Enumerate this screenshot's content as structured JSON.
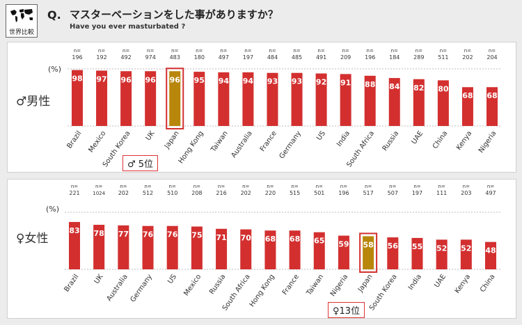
{
  "header": {
    "logo_text": "世界比較",
    "q_label": "Q.",
    "title": "マスターベーションをした事がありますか？",
    "subtitle": "Have you ever masturbated ?"
  },
  "colors": {
    "bar": "#d32f2f",
    "highlight": "#b8860b",
    "highlight_border": "#d32f2f"
  },
  "chart_data": [
    {
      "type": "bar",
      "id": "male",
      "title": "♂男性",
      "ylabel": "(%)",
      "ylim": [
        0,
        100
      ],
      "n_prefix": "n=",
      "categories": [
        "Brazil",
        "Mexico",
        "South Korea",
        "UK",
        "Japan",
        "Hong Kong",
        "Taiwan",
        "Australia",
        "France",
        "Germany",
        "US",
        "India",
        "South Africa",
        "Russia",
        "UAE",
        "China",
        "Kenya",
        "Nigeria"
      ],
      "n": [
        "196",
        "192",
        "492",
        "974",
        "483",
        "180",
        "497",
        "197",
        "484",
        "485",
        "491",
        "209",
        "196",
        "184",
        "289",
        "511",
        "202",
        "204"
      ],
      "values": [
        98,
        97,
        96,
        96,
        96,
        95,
        94,
        94,
        93,
        93,
        92,
        91,
        88,
        84,
        82,
        80,
        68,
        68
      ],
      "highlight": "Japan",
      "callout": "♂ 5位"
    },
    {
      "type": "bar",
      "id": "female",
      "title": "♀女性",
      "ylabel": "(%)",
      "ylim": [
        0,
        100
      ],
      "n_prefix": "n=",
      "categories": [
        "Brazil",
        "UK",
        "Australia",
        "Germany",
        "US",
        "Mexico",
        "Russia",
        "South Africa",
        "Hong Kong",
        "France",
        "Taiwan",
        "Nigeria",
        "Japan",
        "South Korea",
        "India",
        "UAE",
        "Kenya",
        "China"
      ],
      "n": [
        "221",
        "1024",
        "202",
        "512",
        "510",
        "208",
        "216",
        "202",
        "220",
        "515",
        "501",
        "196",
        "517",
        "507",
        "197",
        "111",
        "203",
        "497"
      ],
      "values": [
        83,
        78,
        77,
        76,
        76,
        75,
        71,
        70,
        68,
        68,
        65,
        59,
        58,
        56,
        55,
        52,
        52,
        48
      ],
      "highlight": "Japan",
      "callout": "♀13位"
    }
  ]
}
